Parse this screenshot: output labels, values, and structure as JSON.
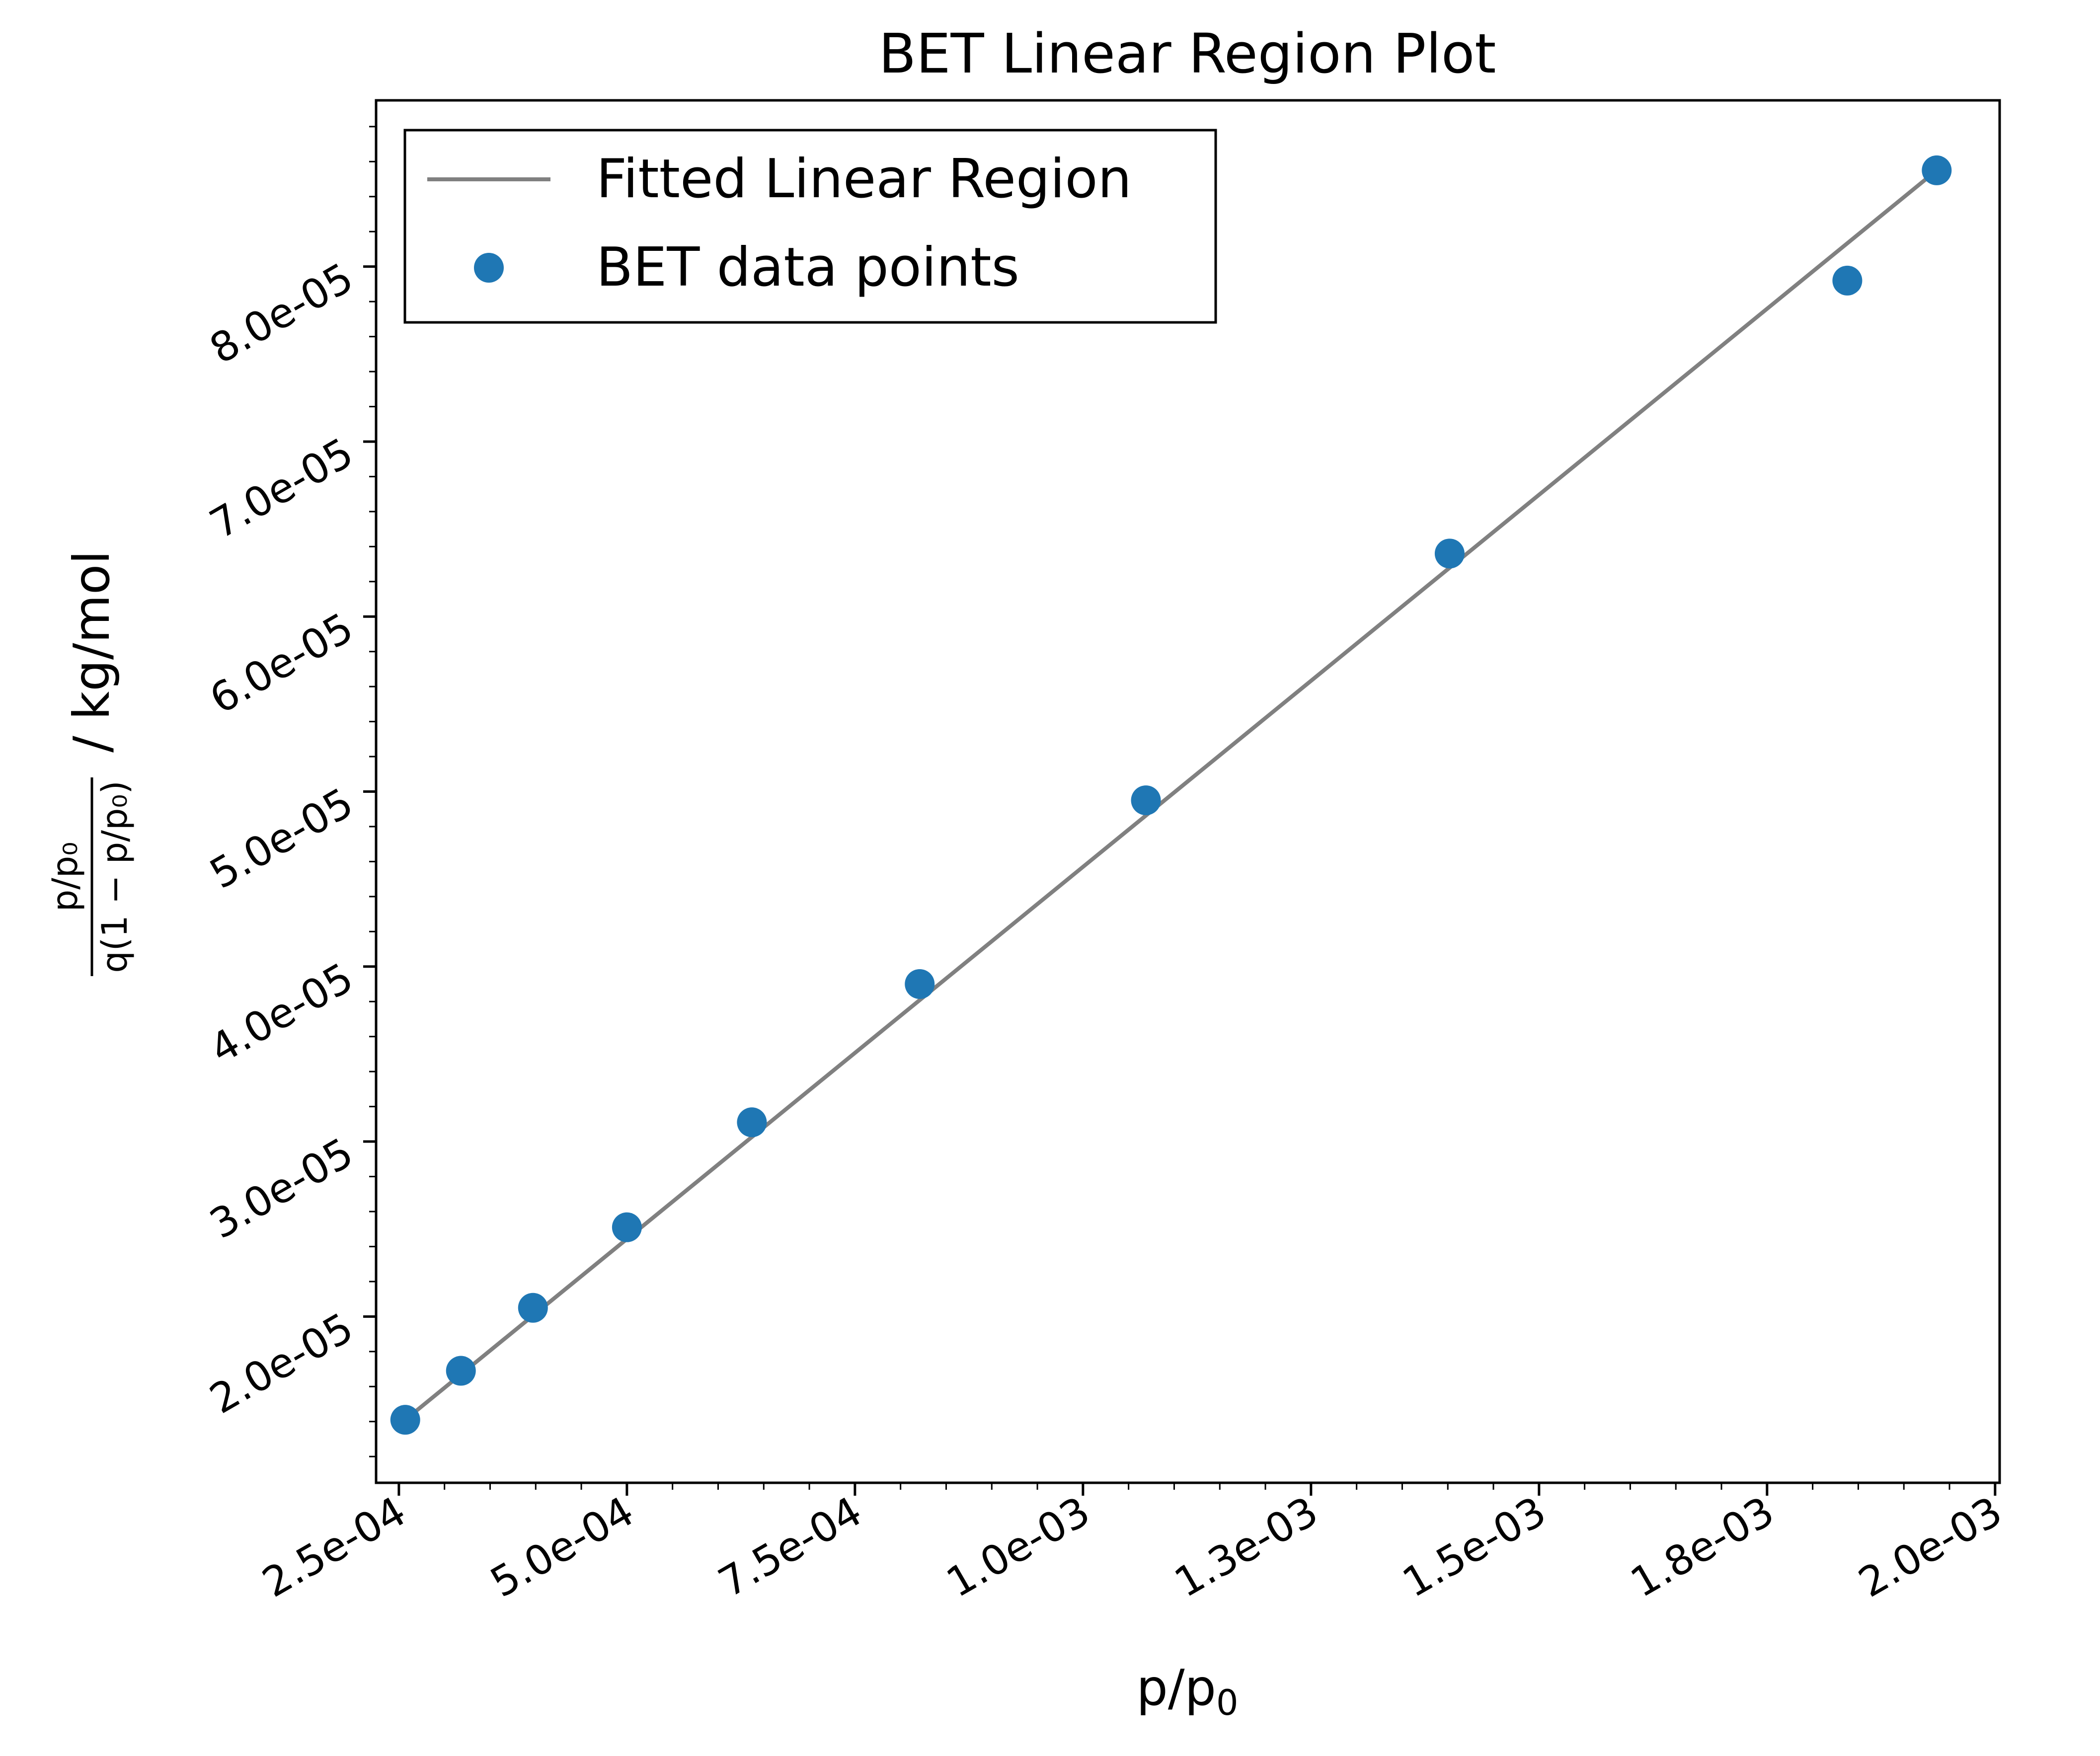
{
  "chart_data": {
    "type": "scatter",
    "title": "BET Linear Region Plot",
    "xlabel": "p/p₀",
    "ylabel": {
      "numerator": "p/p₀",
      "denominator": "q(1 − p/p₀)",
      "unit": "/ kg/mol"
    },
    "xlim": [
      0.000225,
      0.002005
    ],
    "ylim": [
      1.05e-05,
      8.95e-05
    ],
    "x_ticks": [
      0.00025,
      0.0005,
      0.00075,
      0.001,
      0.00125,
      0.0015,
      0.00175,
      0.002
    ],
    "x_tick_labels": [
      "2.5e-04",
      "5.0e-04",
      "7.5e-04",
      "1.0e-03",
      "1.3e-03",
      "1.5e-03",
      "1.8e-03",
      "2.0e-03"
    ],
    "y_ticks": [
      2e-05,
      3e-05,
      4e-05,
      5e-05,
      6e-05,
      7e-05,
      8e-05
    ],
    "y_tick_labels": [
      "2.0e-05",
      "3.0e-05",
      "4.0e-05",
      "5.0e-05",
      "6.0e-05",
      "7.0e-05",
      "8.0e-05"
    ],
    "grid": false,
    "legend_position": "upper-left",
    "series": [
      {
        "name": "Fitted Linear Region",
        "kind": "line",
        "color": "#808080",
        "x": [
          0.000257,
          0.001936
        ],
        "y": [
          1.41e-05,
          8.55e-05
        ]
      },
      {
        "name": "BET data points",
        "kind": "scatter",
        "color": "#1f77b4",
        "x": [
          0.000257,
          0.000318,
          0.000397,
          0.0005,
          0.000637,
          0.000821,
          0.001069,
          0.001402,
          0.001838,
          0.001936
        ],
        "y": [
          1.41e-05,
          1.69e-05,
          2.05e-05,
          2.51e-05,
          3.11e-05,
          3.9e-05,
          4.95e-05,
          6.36e-05,
          7.92e-05,
          8.55e-05
        ]
      }
    ]
  }
}
